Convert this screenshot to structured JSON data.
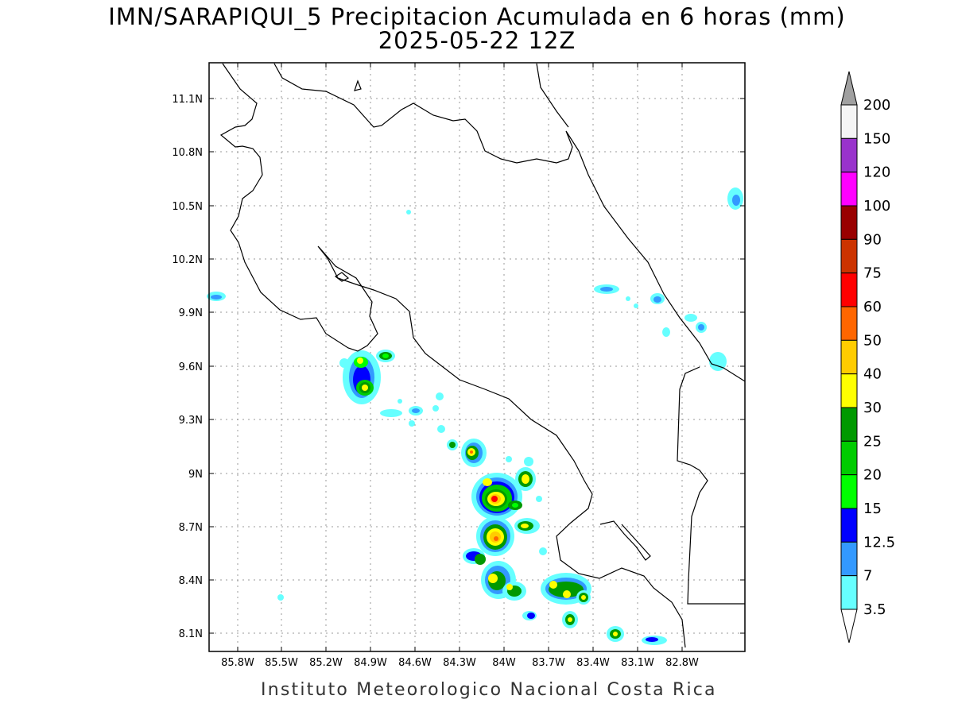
{
  "title_line1": "IMN/SARAPIQUI_5 Precipitacion Acumulada en 6 horas (mm)",
  "title_line2": "2025-05-22 12Z",
  "footer": "Instituto Meteorologico Nacional Costa Rica",
  "lat_labels": [
    "11.1N",
    "10.8N",
    "10.5N",
    "10.2N",
    "9.9N",
    "9.6N",
    "9.3N",
    "9N",
    "8.7N",
    "8.4N",
    "8.1N"
  ],
  "lon_labels": [
    "85.8W",
    "85.5W",
    "85.2W",
    "84.9W",
    "84.6W",
    "84.3W",
    "84W",
    "83.7W",
    "83.4W",
    "83.1W",
    "82.8W"
  ],
  "colorbar": {
    "labels": [
      "200",
      "150",
      "120",
      "100",
      "90",
      "75",
      "60",
      "50",
      "40",
      "30",
      "25",
      "20",
      "15",
      "12.5",
      "7",
      "3.5"
    ],
    "colors": [
      "#f5f5f5",
      "#9933cc",
      "#ff00ff",
      "#990000",
      "#cc3300",
      "#ff0000",
      "#ff6600",
      "#ffcc00",
      "#ffff00",
      "#009900",
      "#00cc00",
      "#00ff00",
      "#0000ff",
      "#3399ff",
      "#66ffff"
    ],
    "over_color": "#a0a0a0",
    "under_color": "#ffffff"
  }
}
